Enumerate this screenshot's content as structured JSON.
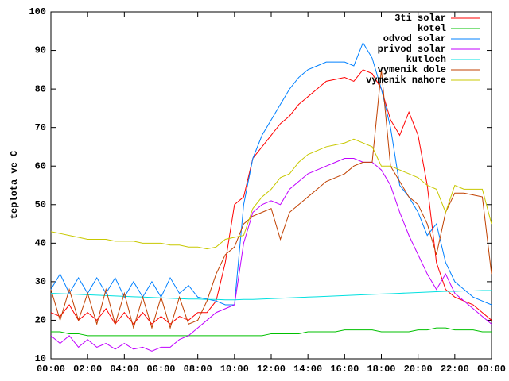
{
  "chart_data": {
    "type": "line",
    "ylabel": "teplota ve C",
    "x": [
      0,
      0.5,
      1,
      1.5,
      2,
      2.5,
      3,
      3.5,
      4,
      4.5,
      5,
      5.5,
      6,
      6.5,
      7,
      7.5,
      8,
      8.5,
      9,
      9.5,
      10,
      10.5,
      11,
      11.5,
      12,
      12.5,
      13,
      13.5,
      14,
      14.5,
      15,
      15.5,
      16,
      16.5,
      17,
      17.5,
      18,
      18.5,
      19,
      19.5,
      20,
      20.5,
      21,
      21.5,
      22,
      22.5,
      23,
      23.5,
      24
    ],
    "xlim": [
      0,
      24
    ],
    "xticks": [
      {
        "value": 0,
        "label": "00:00"
      },
      {
        "value": 2,
        "label": "02:00"
      },
      {
        "value": 4,
        "label": "04:00"
      },
      {
        "value": 6,
        "label": "06:00"
      },
      {
        "value": 8,
        "label": "08:00"
      },
      {
        "value": 10,
        "label": "10:00"
      },
      {
        "value": 12,
        "label": "12:00"
      },
      {
        "value": 14,
        "label": "14:00"
      },
      {
        "value": 16,
        "label": "16:00"
      },
      {
        "value": 18,
        "label": "18:00"
      },
      {
        "value": 20,
        "label": "20:00"
      },
      {
        "value": 22,
        "label": "22:00"
      },
      {
        "value": 24,
        "label": "00:00"
      }
    ],
    "ylim": [
      10,
      100
    ],
    "yticks": [
      10,
      20,
      30,
      40,
      50,
      60,
      70,
      80,
      90,
      100
    ],
    "grid": false,
    "legend": "top-right",
    "series": [
      {
        "name": "3ti solar",
        "color": "#ff0000",
        "values": [
          22,
          21,
          24,
          20,
          22,
          20,
          23,
          19,
          22,
          19,
          22,
          19,
          21,
          19,
          21,
          20,
          22,
          22,
          25,
          35,
          50,
          52,
          62,
          65,
          68,
          71,
          73,
          76,
          78,
          80,
          82,
          82.5,
          83,
          82,
          85,
          84,
          80,
          72,
          68,
          74,
          68,
          55,
          35,
          28,
          26,
          25,
          24,
          22,
          20
        ]
      },
      {
        "name": "kotel",
        "color": "#00c000",
        "values": [
          17,
          17,
          16.5,
          16.5,
          16,
          16,
          16,
          16,
          16,
          16,
          16,
          16,
          16,
          16,
          16,
          16,
          16,
          16,
          16,
          16,
          16,
          16,
          16,
          16,
          16.5,
          16.5,
          16.5,
          16.5,
          17,
          17,
          17,
          17,
          17.5,
          17.5,
          17.5,
          17.5,
          17,
          17,
          17,
          17,
          17.5,
          17.5,
          18,
          18,
          17.5,
          17.5,
          17.5,
          17,
          17
        ]
      },
      {
        "name": "odvod solar",
        "color": "#0080ff",
        "values": [
          28,
          32,
          27,
          31,
          27,
          31,
          27,
          31,
          26,
          30,
          26,
          30,
          26,
          31,
          27,
          29,
          26,
          25.5,
          25,
          24,
          24,
          50,
          62,
          68,
          72,
          76,
          80,
          83,
          85,
          86,
          87,
          87,
          87,
          86,
          92,
          88,
          80,
          70,
          55,
          52,
          48,
          42,
          45,
          35,
          30,
          28,
          26,
          25,
          24
        ]
      },
      {
        "name": "privod solar",
        "color": "#c000ff",
        "values": [
          16,
          14,
          16,
          13,
          15,
          13,
          14,
          12.5,
          14,
          12.5,
          13,
          12,
          13,
          13,
          15,
          16,
          18,
          20,
          22,
          23,
          24,
          40,
          48,
          50,
          51,
          50,
          54,
          56,
          58,
          59,
          60,
          61,
          62,
          62,
          61,
          61,
          59,
          55,
          48,
          42,
          37,
          32,
          28,
          32,
          27,
          25,
          23,
          21,
          19
        ]
      },
      {
        "name": "kutloch",
        "color": "#00e0e0",
        "values": [
          27,
          26.9,
          26.8,
          26.7,
          26.6,
          26.5,
          26.4,
          26.3,
          26.2,
          26.1,
          26,
          25.9,
          25.8,
          25.7,
          25.6,
          25.5,
          25.5,
          25.4,
          25.4,
          25.3,
          25.3,
          25.4,
          25.4,
          25.5,
          25.6,
          25.7,
          25.8,
          25.9,
          26,
          26.1,
          26.2,
          26.3,
          26.4,
          26.5,
          26.6,
          26.7,
          26.8,
          26.9,
          27,
          27.1,
          27.2,
          27.3,
          27.4,
          27.5,
          27.5,
          27.6,
          27.6,
          27.7,
          27.7
        ]
      },
      {
        "name": "vymenik dole",
        "color": "#c04000",
        "values": [
          28,
          20,
          28,
          20,
          27,
          19,
          28,
          19,
          27,
          18,
          26,
          18,
          26,
          18,
          26,
          19,
          20,
          25,
          32,
          37,
          39,
          45,
          47,
          48,
          49,
          41,
          48,
          50,
          52,
          54,
          56,
          57,
          58,
          60,
          61,
          61,
          85,
          60,
          56,
          52,
          50,
          45,
          37,
          48,
          53,
          53,
          52.5,
          52,
          32
        ]
      },
      {
        "name": "vymenik nahore",
        "color": "#c8c800",
        "values": [
          43,
          42.5,
          42,
          41.5,
          41,
          41,
          41,
          40.5,
          40.5,
          40.5,
          40,
          40,
          40,
          39.5,
          39.5,
          39,
          39,
          38.5,
          39,
          41,
          41.5,
          42,
          49,
          52,
          54,
          57,
          58,
          61,
          63,
          64,
          65,
          65.5,
          66,
          67,
          66,
          65,
          60,
          60,
          59,
          58,
          57,
          55,
          54,
          48,
          55,
          54,
          54,
          54,
          45
        ]
      }
    ]
  }
}
